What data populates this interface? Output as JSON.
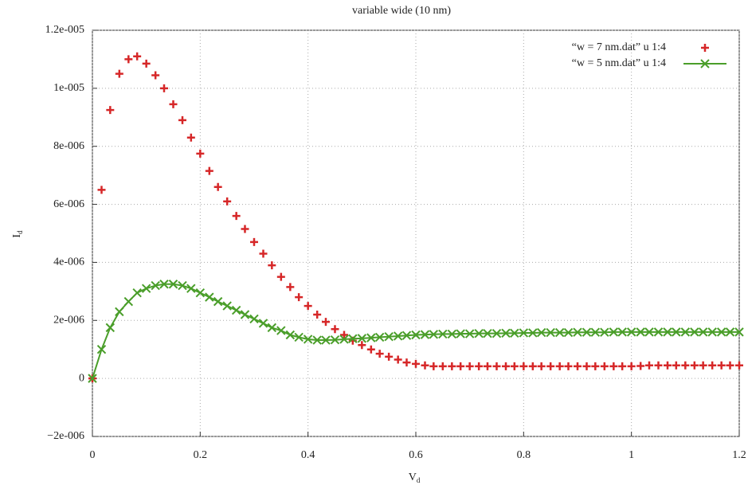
{
  "chart_data": {
    "type": "scatter",
    "title": "variable wide (10 nm)",
    "xlabel": "V",
    "xlabel_subscript": "d",
    "ylabel": "I",
    "ylabel_subscript": "d",
    "x": [
      0,
      0.017,
      0.033,
      0.05,
      0.067,
      0.083,
      0.1,
      0.117,
      0.133,
      0.15,
      0.167,
      0.183,
      0.2,
      0.217,
      0.233,
      0.25,
      0.267,
      0.283,
      0.3,
      0.317,
      0.333,
      0.35,
      0.367,
      0.383,
      0.4,
      0.417,
      0.433,
      0.45,
      0.467,
      0.483,
      0.5,
      0.517,
      0.533,
      0.55,
      0.567,
      0.583,
      0.6,
      0.617,
      0.633,
      0.65,
      0.667,
      0.683,
      0.7,
      0.717,
      0.733,
      0.75,
      0.767,
      0.783,
      0.8,
      0.817,
      0.833,
      0.85,
      0.867,
      0.883,
      0.9,
      0.917,
      0.933,
      0.95,
      0.967,
      0.983,
      1,
      1.017,
      1.033,
      1.05,
      1.067,
      1.083,
      1.1,
      1.117,
      1.133,
      1.15,
      1.167,
      1.183,
      1.2
    ],
    "series": [
      {
        "name": "“w = 7 nm.dat” u 1:4",
        "color": "#d62728",
        "marker": "plus",
        "line": false,
        "values": [
          0,
          6.5e-06,
          9.25e-06,
          1.05e-05,
          1.1e-05,
          1.11e-05,
          1.085e-05,
          1.045e-05,
          1e-05,
          9.45e-06,
          8.9e-06,
          8.3e-06,
          7.75e-06,
          7.15e-06,
          6.6e-06,
          6.1e-06,
          5.6e-06,
          5.15e-06,
          4.7e-06,
          4.3e-06,
          3.9e-06,
          3.5e-06,
          3.15e-06,
          2.8e-06,
          2.5e-06,
          2.2e-06,
          1.95e-06,
          1.7e-06,
          1.5e-06,
          1.3e-06,
          1.15e-06,
          1e-06,
          8.5e-07,
          7.5e-07,
          6.5e-07,
          5.5e-07,
          5e-07,
          4.5e-07,
          4.2e-07,
          4.2e-07,
          4.2e-07,
          4.2e-07,
          4.2e-07,
          4.2e-07,
          4.2e-07,
          4.2e-07,
          4.2e-07,
          4.2e-07,
          4.2e-07,
          4.2e-07,
          4.2e-07,
          4.2e-07,
          4.2e-07,
          4.2e-07,
          4.2e-07,
          4.2e-07,
          4.2e-07,
          4.2e-07,
          4.2e-07,
          4.2e-07,
          4.2e-07,
          4.3e-07,
          4.5e-07,
          4.5e-07,
          4.5e-07,
          4.5e-07,
          4.5e-07,
          4.5e-07,
          4.5e-07,
          4.5e-07,
          4.5e-07,
          4.5e-07,
          4.5e-07
        ]
      },
      {
        "name": "“w = 5 nm.dat” u 1:4",
        "color": "#4a9e2a",
        "marker": "cross",
        "line": true,
        "values": [
          0,
          1e-06,
          1.75e-06,
          2.3e-06,
          2.65e-06,
          2.95e-06,
          3.1e-06,
          3.2e-06,
          3.25e-06,
          3.25e-06,
          3.2e-06,
          3.1e-06,
          2.95e-06,
          2.8e-06,
          2.65e-06,
          2.5e-06,
          2.35e-06,
          2.2e-06,
          2.05e-06,
          1.9e-06,
          1.75e-06,
          1.65e-06,
          1.5e-06,
          1.42e-06,
          1.35e-06,
          1.32e-06,
          1.32e-06,
          1.33e-06,
          1.35e-06,
          1.37e-06,
          1.38e-06,
          1.4e-06,
          1.42e-06,
          1.44e-06,
          1.46e-06,
          1.48e-06,
          1.5e-06,
          1.51e-06,
          1.52e-06,
          1.53e-06,
          1.53e-06,
          1.54e-06,
          1.54e-06,
          1.55e-06,
          1.55e-06,
          1.55e-06,
          1.56e-06,
          1.56e-06,
          1.57e-06,
          1.57e-06,
          1.58e-06,
          1.58e-06,
          1.58e-06,
          1.58e-06,
          1.59e-06,
          1.59e-06,
          1.59e-06,
          1.59e-06,
          1.6e-06,
          1.6e-06,
          1.6e-06,
          1.6e-06,
          1.6e-06,
          1.6e-06,
          1.6e-06,
          1.6e-06,
          1.6e-06,
          1.6e-06,
          1.6e-06,
          1.6e-06,
          1.6e-06,
          1.6e-06,
          1.6e-06
        ]
      }
    ],
    "xlim": [
      0,
      1.2
    ],
    "xticks": [
      0,
      0.2,
      0.4,
      0.6,
      0.8,
      1,
      1.2
    ],
    "ylim": [
      -2e-06,
      1.2e-05
    ],
    "yticks": [
      {
        "value": -2e-06,
        "label": "−2e-006"
      },
      0,
      {
        "value": 2e-06,
        "label": "2e-006"
      },
      {
        "value": 4e-06,
        "label": "4e-006"
      },
      {
        "value": 6e-06,
        "label": "6e-006"
      },
      {
        "value": 8e-06,
        "label": "8e-006"
      },
      {
        "value": 1e-05,
        "label": "1e-005"
      },
      {
        "value": 1.2e-05,
        "label": "1.2e-005"
      }
    ],
    "grid": true,
    "legend": "top-right"
  }
}
